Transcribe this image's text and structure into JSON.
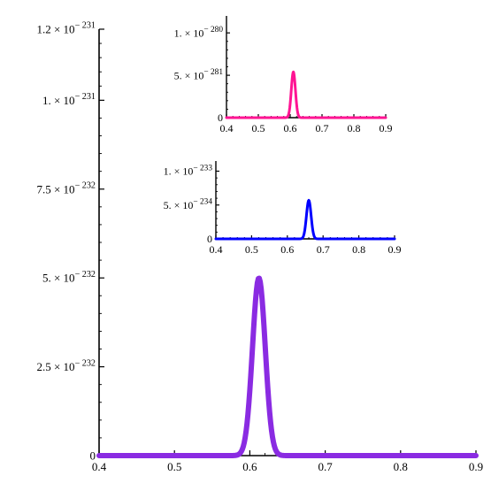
{
  "colors": {
    "main": "#8a2be2",
    "inset_top": "#ff1493",
    "inset_bottom": "#0000ff",
    "axis": "#000000"
  },
  "chart_data": [
    {
      "id": "main",
      "type": "line",
      "title": "",
      "xlabel": "",
      "ylabel": "",
      "xlim": [
        0.4,
        0.9
      ],
      "ylim": [
        0,
        1.2e-231
      ],
      "grid": false,
      "x_ticks": [
        {
          "value": 0.4,
          "label": "0.4"
        },
        {
          "value": 0.5,
          "label": "0.5"
        },
        {
          "value": 0.6,
          "label": "0.6"
        },
        {
          "value": 0.7,
          "label": "0.7"
        },
        {
          "value": 0.8,
          "label": "0.8"
        },
        {
          "value": 0.9,
          "label": "0.9"
        }
      ],
      "y_ticks": [
        {
          "value": 0,
          "label": "0",
          "mant": "0",
          "exp": ""
        },
        {
          "value": 2.5e-232,
          "label": "2.5 × 10^-232",
          "mant": "2.5 × 10",
          "exp": "− 232"
        },
        {
          "value": 5e-232,
          "label": "5. × 10^-232",
          "mant": "5. × 10",
          "exp": "− 232"
        },
        {
          "value": 7.5e-232,
          "label": "7.5 × 10^-232",
          "mant": "7.5 × 10",
          "exp": "− 232"
        },
        {
          "value": 1e-231,
          "label": "1. × 10^-231",
          "mant": "1. × 10",
          "exp": "− 231"
        },
        {
          "value": 1.2e-231,
          "label": "1.2 × 10^-231",
          "mant": "1.2 × 10",
          "exp": "− 231"
        }
      ],
      "series": [
        {
          "peak_x": 0.612,
          "peak_y": 5e-232,
          "width_sigma": 0.0085,
          "color": "#8a2be2"
        }
      ]
    },
    {
      "id": "inset_top",
      "type": "line",
      "title": "",
      "xlabel": "",
      "ylabel": "",
      "xlim": [
        0.4,
        0.9
      ],
      "ylim": [
        0,
        1.2e-280
      ],
      "grid": false,
      "x_ticks": [
        {
          "value": 0.4,
          "label": "0.4"
        },
        {
          "value": 0.5,
          "label": "0.5"
        },
        {
          "value": 0.6,
          "label": "0.6"
        },
        {
          "value": 0.7,
          "label": "0.7"
        },
        {
          "value": 0.8,
          "label": "0.8"
        },
        {
          "value": 0.9,
          "label": "0.9"
        }
      ],
      "y_ticks": [
        {
          "value": 0,
          "label": "0",
          "mant": "0",
          "exp": ""
        },
        {
          "value": 5e-281,
          "label": "5. × 10^-281",
          "mant": "5. × 10",
          "exp": "− 281"
        },
        {
          "value": 1e-280,
          "label": "1. × 10^-280",
          "mant": "1. × 10",
          "exp": "− 280"
        }
      ],
      "series": [
        {
          "peak_x": 0.61,
          "peak_y": 5.4e-281,
          "width_sigma": 0.0065,
          "color": "#ff1493"
        }
      ]
    },
    {
      "id": "inset_bottom",
      "type": "line",
      "title": "",
      "xlabel": "",
      "ylabel": "",
      "xlim": [
        0.4,
        0.9
      ],
      "ylim": [
        0,
        1.15e-233
      ],
      "grid": false,
      "x_ticks": [
        {
          "value": 0.4,
          "label": "0.4"
        },
        {
          "value": 0.5,
          "label": "0.5"
        },
        {
          "value": 0.6,
          "label": "0.6"
        },
        {
          "value": 0.7,
          "label": "0.7"
        },
        {
          "value": 0.8,
          "label": "0.8"
        },
        {
          "value": 0.9,
          "label": "0.9"
        }
      ],
      "y_ticks": [
        {
          "value": 0,
          "label": "0",
          "mant": "0",
          "exp": ""
        },
        {
          "value": 5e-234,
          "label": "5. × 10^-234",
          "mant": "5. × 10",
          "exp": "− 234"
        },
        {
          "value": 1e-233,
          "label": "1. × 10^-233",
          "mant": "1. × 10",
          "exp": "− 233"
        }
      ],
      "series": [
        {
          "peak_x": 0.66,
          "peak_y": 5.7e-234,
          "width_sigma": 0.0065,
          "color": "#0000ff"
        }
      ]
    }
  ]
}
